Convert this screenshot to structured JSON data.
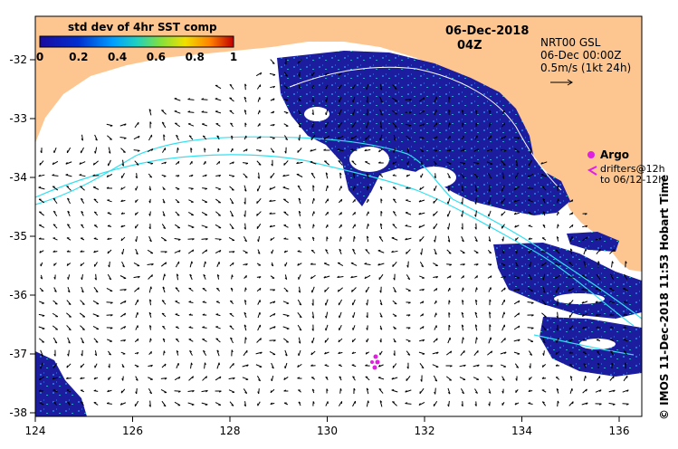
{
  "title": {
    "date": "06-Dec-2018",
    "time": "04Z"
  },
  "colorbar": {
    "title": "std dev of 4hr SST comp",
    "ticks": [
      "0",
      "0.2",
      "0.4",
      "0.6",
      "0.8",
      "1"
    ],
    "colors": [
      "#1a0aa0",
      "#0030d0",
      "#00a0ff",
      "#20d0c0",
      "#80e040",
      "#f0e000",
      "#ff8000",
      "#c00000"
    ]
  },
  "current_info": {
    "line1": "NRT00 GSL",
    "line2": "06-Dec 00:00Z",
    "line3": "0.5m/s (1kt 24h)"
  },
  "legend": {
    "argo": "Argo",
    "drifters": "drifters@12h",
    "drifters_to": "to 06/12-12h"
  },
  "credit": "© IMOS 11-Dec-2018 11:53 Hobart Time",
  "axes": {
    "lon_ticks": [
      "124",
      "126",
      "128",
      "130",
      "132",
      "134",
      "136"
    ],
    "lat_ticks": [
      "-32",
      "-33",
      "-34",
      "-35",
      "-36",
      "-37",
      "-38"
    ]
  },
  "colors": {
    "land": "#fdc690",
    "sst_dark": "#1a1a9c",
    "track": "#33e0f0",
    "argo": "#e020e0"
  }
}
